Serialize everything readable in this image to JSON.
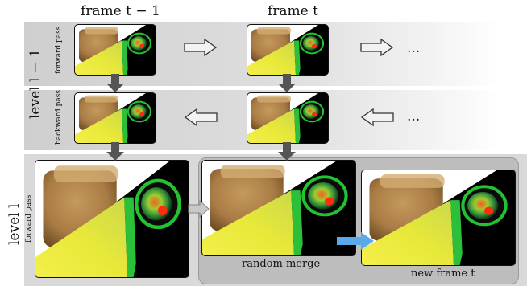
{
  "headers": {
    "frame_prev": "frame t − 1",
    "frame_cur": "frame t"
  },
  "levels": {
    "upper": "level l − 1",
    "lower": "level l"
  },
  "passes": {
    "forward_top": "forward pass",
    "backward": "backward pass",
    "forward_bottom": "forward pass"
  },
  "ellipsis": "...",
  "captions": {
    "random_merge": "random merge",
    "new_frame": "new frame t"
  },
  "colors": {
    "band": "#d9d9d9",
    "merge_box": "#bdbdbd",
    "blue_arrow": "#5aa9ea",
    "dark_arrow": "#555555"
  }
}
